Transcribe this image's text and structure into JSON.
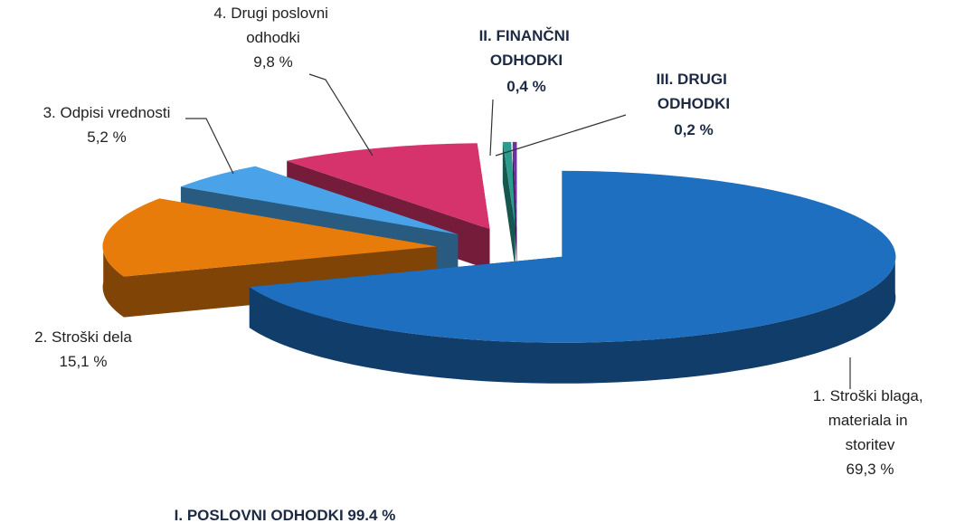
{
  "chart_data": {
    "type": "pie3d",
    "categories": [
      "1. Stroški blaga, materiala in storitev",
      "2. Stroški dela",
      "3. Odpisi vrednosti",
      "4. Drugi poslovni odhodki",
      "II. FINANČNI ODHODKI",
      "III. DRUGI ODHODKI"
    ],
    "values": [
      69.3,
      15.1,
      5.2,
      9.8,
      0.4,
      0.2
    ],
    "value_labels": [
      "69,3 %",
      "15,1 %",
      "5,2 %",
      "9,8 %",
      "0,4 %",
      "0,2 %"
    ],
    "colors": [
      "#1f6fc0",
      "#e87c0a",
      "#4aa3e8",
      "#d6336c",
      "#2a9d8f",
      "#7030a0"
    ],
    "annotation": "I. POSLOVNI ODHODKI 99.4 %"
  }
}
